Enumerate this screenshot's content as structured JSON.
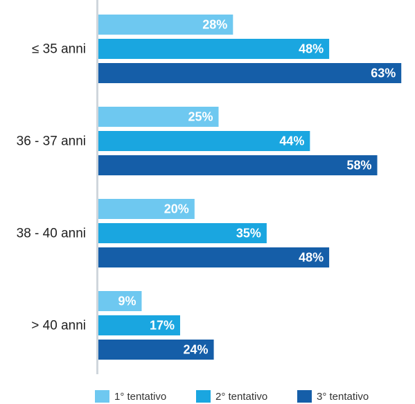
{
  "chart_data": {
    "type": "bar",
    "orientation": "horizontal",
    "categories": [
      "≤ 35 anni",
      "36 - 37 anni",
      "38 - 40 anni",
      "> 40 anni"
    ],
    "series": [
      {
        "name": "1° tentativo",
        "values": [
          28,
          25,
          20,
          9
        ],
        "labels": [
          "28%",
          "25%",
          "20%",
          "9%"
        ],
        "color": "#6ec8f0"
      },
      {
        "name": "2° tentativo",
        "values": [
          48,
          44,
          35,
          17
        ],
        "labels": [
          "48%",
          "44%",
          "35%",
          "17%"
        ],
        "color": "#1aa6e0"
      },
      {
        "name": "3° tentativo",
        "values": [
          63,
          58,
          48,
          24
        ],
        "labels": [
          "63%",
          "58%",
          "48%",
          "24%"
        ],
        "color": "#155ea8"
      }
    ],
    "xlim": [
      0,
      70
    ],
    "grid": false,
    "legend_position": "bottom",
    "axis_color": "#cfd6dc"
  }
}
